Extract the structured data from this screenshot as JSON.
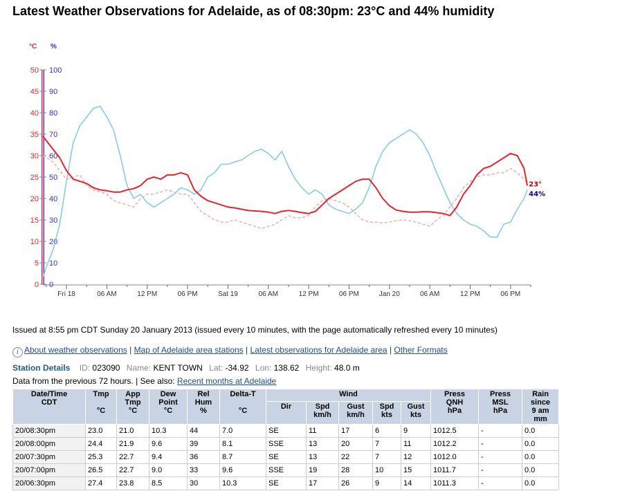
{
  "title": "Latest Weather Observations for Adelaide, as of 08:30pm: 23°C and 44% humidity",
  "chart_data": {
    "type": "line",
    "unit_temp": "°C",
    "unit_hum": "%",
    "ylim_temp": [
      0,
      50
    ],
    "ylim_hum": [
      0,
      100
    ],
    "y_ticks_temp": [
      "0",
      "5",
      "10",
      "15",
      "20",
      "25",
      "30",
      "35",
      "40",
      "45",
      "50"
    ],
    "y_ticks_hum": [
      "0",
      "10",
      "20",
      "30",
      "40",
      "50",
      "60",
      "70",
      "80",
      "90",
      "100"
    ],
    "x_labels": [
      "Fri 18",
      "06 AM",
      "12 PM",
      "06 PM",
      "Sat 19",
      "06 AM",
      "12 PM",
      "06 PM",
      "Jan 20",
      "06 AM",
      "12 PM",
      "06 PM"
    ],
    "x_hours": [
      0,
      6,
      12,
      18,
      24,
      30,
      36,
      42,
      48,
      54,
      60,
      66
    ],
    "xlim_hours": [
      -3.5,
      69
    ],
    "end_temp_label": "23°",
    "end_hum_label": "44%",
    "colors": {
      "temperature": "#e8232a",
      "dew_point": "#f5a8a8",
      "humidity": "#87cbec",
      "axis_temp": "#e8232a",
      "axis_hum": "#3030d8"
    },
    "series": [
      {
        "x": [
          -3.5,
          -3,
          -2,
          -1,
          0,
          1,
          2,
          3,
          4,
          5,
          6,
          7,
          8,
          9,
          10,
          11,
          12,
          13,
          14,
          15,
          16,
          17,
          18,
          19,
          20,
          21,
          22,
          23,
          24,
          25,
          26,
          27,
          28,
          29,
          30,
          31,
          32,
          33,
          34,
          35,
          36,
          37,
          38,
          39,
          40,
          41,
          42,
          43,
          44,
          45,
          46,
          47,
          48,
          49,
          50,
          51,
          52,
          53,
          54,
          55,
          56,
          57,
          58,
          59,
          60,
          61,
          62,
          63,
          64,
          65,
          66,
          67,
          68,
          68.5
        ],
        "values": [
          34.5,
          33.5,
          31.5,
          29.5,
          26.5,
          24.5,
          24,
          23.5,
          22.5,
          22,
          21.8,
          21.5,
          21.5,
          22,
          22.3,
          23,
          24.5,
          25,
          24.5,
          25.5,
          25.5,
          26,
          25.5,
          22,
          20.5,
          19.5,
          19,
          18.5,
          18,
          17.8,
          17.5,
          17.2,
          17.1,
          17,
          16.8,
          16.5,
          17,
          17.2,
          17,
          16.7,
          16.5,
          17,
          18.5,
          20,
          21,
          22,
          23,
          24,
          24.5,
          24.5,
          22.5,
          20,
          18.3,
          17.3,
          17,
          16.8,
          16.8,
          16.9,
          16.9,
          16.7,
          16.5,
          16,
          18,
          21,
          23,
          25.5,
          27,
          27.5,
          28.5,
          29.5,
          30.5,
          30,
          27,
          23
        ]
      },
      {
        "x": [
          -3.5,
          -3,
          -2,
          -1,
          0,
          1,
          2,
          3,
          4,
          5,
          6,
          7,
          8,
          9,
          10,
          11,
          12,
          13,
          14,
          15,
          16,
          17,
          18,
          19,
          20,
          21,
          22,
          23,
          24,
          25,
          26,
          27,
          28,
          29,
          30,
          31,
          32,
          33,
          34,
          35,
          36,
          37,
          38,
          39,
          40,
          41,
          42,
          43,
          44,
          45,
          46,
          47,
          48,
          49,
          50,
          51,
          52,
          53,
          54,
          55,
          56,
          57,
          58,
          59,
          60,
          61,
          62,
          63,
          64,
          65,
          66,
          67,
          68,
          68.5
        ],
        "values": [
          30,
          29.5,
          28.5,
          26.5,
          24.5,
          25,
          25.5,
          23,
          22,
          21.5,
          21,
          19.5,
          19,
          18.5,
          18,
          20,
          21,
          21,
          21.5,
          22,
          21.5,
          21,
          21,
          19,
          17,
          16,
          15,
          14.5,
          14.5,
          15,
          14.5,
          14,
          13.5,
          13,
          13.5,
          14,
          15,
          16,
          15.5,
          15.5,
          16,
          18,
          19.5,
          20,
          19.5,
          19,
          18,
          16.5,
          15,
          14.5,
          14.5,
          14.3,
          14.5,
          14.8,
          15,
          14.8,
          14.5,
          14,
          13.5,
          15,
          16,
          18,
          20,
          22.5,
          24,
          25,
          25.5,
          25.5,
          26,
          26,
          27,
          26,
          24.5,
          23.5
        ]
      },
      {
        "x": [
          -3.5,
          -3,
          -2,
          -1,
          0,
          1,
          2,
          3,
          4,
          5,
          6,
          7,
          8,
          9,
          10,
          11,
          12,
          13,
          14,
          15,
          16,
          17,
          18,
          19,
          20,
          21,
          22,
          23,
          24,
          25,
          26,
          27,
          28,
          29,
          30,
          31,
          32,
          33,
          34,
          35,
          36,
          37,
          38,
          39,
          40,
          41,
          42,
          43,
          44,
          45,
          46,
          47,
          48,
          49,
          50,
          51,
          52,
          53,
          54,
          55,
          56,
          57,
          58,
          59,
          60,
          61,
          62,
          63,
          64,
          65,
          66,
          67,
          68,
          68.5
        ],
        "values": [
          3,
          8,
          16,
          28,
          48,
          66,
          74,
          78,
          82,
          83,
          78,
          72,
          60,
          46,
          40,
          42,
          38,
          36,
          38,
          40,
          42,
          45,
          44,
          42,
          44,
          50,
          52,
          56,
          56,
          57,
          58,
          60,
          62,
          63,
          61,
          58,
          62,
          55,
          49,
          45,
          42,
          44,
          42,
          37,
          35,
          34,
          33,
          35,
          38,
          45,
          55,
          62,
          66,
          68,
          70,
          72,
          70,
          66,
          60,
          52,
          45,
          38,
          33,
          30,
          28,
          27,
          25,
          22,
          22,
          28,
          29,
          35,
          40,
          44
        ]
      }
    ],
    "series_info": [
      {
        "key": "temperature",
        "style": "solid"
      },
      {
        "key": "dew_point",
        "style": "dashed"
      },
      {
        "key": "humidity",
        "style": "solid"
      }
    ]
  },
  "issued": "Issued at 8:55 pm CDT Sunday 20 January 2013 (issued every 10 minutes, with the page automatically refreshed every 10 minutes)",
  "links": {
    "about": "About weather observations",
    "sep1": " | ",
    "map": "Map of Adelaide area stations",
    "sep2": " | ",
    "latest": "Latest observations for Adelaide area",
    "sep3": " | ",
    "other": "Other Formats"
  },
  "station": {
    "heading": "Station Details",
    "id_label": "ID:",
    "id_value": "023090",
    "name_label": "Name:",
    "name_value": "KENT TOWN",
    "lat_label": "Lat:",
    "lat_value": "-34.92",
    "lon_label": "Lon:",
    "lon_value": "138.62",
    "height_label": "Height:",
    "height_value": "48.0 m"
  },
  "data_from": {
    "text": "Data from the previous 72 hours. | See also: ",
    "link": "Recent months at Adelaide"
  },
  "table": {
    "headers": {
      "datetime": "Date/Time",
      "datetime_sub": "CDT",
      "tmp": "Tmp",
      "tmp_unit": "°C",
      "app": "App",
      "app2": "Tmp",
      "app_unit": "°C",
      "dew": "Dew",
      "dew2": "Point",
      "dew_unit": "°C",
      "rh": "Rel",
      "rh2": "Hum",
      "rh_unit": "%",
      "delta": "Delta-T",
      "delta_unit": "°C",
      "wind": "Wind",
      "dir": "Dir",
      "spd": "Spd",
      "spd_unit": "km/h",
      "gust": "Gust",
      "gust_unit": "km/h",
      "spdk": "Spd",
      "spdk_unit": "kts",
      "gustk": "Gust",
      "gustk_unit": "kts",
      "qnh": "Press",
      "qnh2": "QNH",
      "qnh_unit": "hPa",
      "msl": "Press",
      "msl2": "MSL",
      "msl_unit": "hPa",
      "rain": "Rain",
      "rain2": "since",
      "rain3": "9 am",
      "rain_unit": "mm"
    },
    "rows": [
      [
        "20/08:30pm",
        "23.0",
        "21.0",
        "10.3",
        "44",
        "7.0",
        "SE",
        "11",
        "17",
        "6",
        "9",
        "1012.5",
        "-",
        "0.0"
      ],
      [
        "20/08:00pm",
        "24.4",
        "21.9",
        "9.6",
        "39",
        "8.1",
        "SSE",
        "13",
        "20",
        "7",
        "11",
        "1012.2",
        "-",
        "0.0"
      ],
      [
        "20/07:30pm",
        "25.3",
        "22.7",
        "9.4",
        "36",
        "8.7",
        "SE",
        "13",
        "22",
        "7",
        "12",
        "1012.0",
        "-",
        "0.0"
      ],
      [
        "20/07:00pm",
        "26.5",
        "22.7",
        "9.0",
        "33",
        "9.6",
        "SSE",
        "19",
        "28",
        "10",
        "15",
        "1011.7",
        "-",
        "0.0"
      ],
      [
        "20/06:30pm",
        "27.4",
        "23.8",
        "8.5",
        "30",
        "10.3",
        "SE",
        "17",
        "26",
        "9",
        "14",
        "1011.3",
        "-",
        "0.0"
      ]
    ]
  }
}
